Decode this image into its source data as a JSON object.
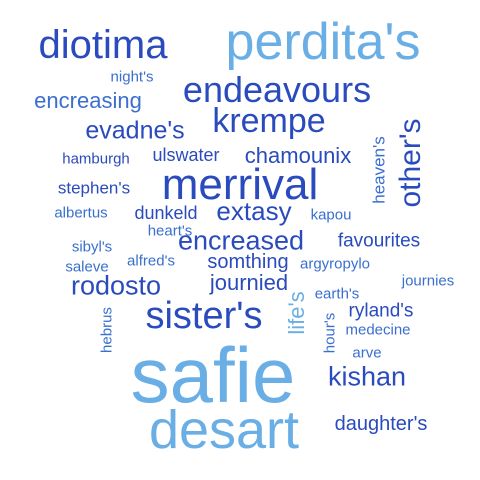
{
  "words": {
    "diotima": "diotima",
    "perdita": "perdita's",
    "nights": "night's",
    "encreasing": "encreasing",
    "endeavours": "endeavours",
    "evadnes": "evadne's",
    "krempe": "krempe",
    "heavens": "heaven's",
    "others": "other's",
    "hamburgh": "hamburgh",
    "ulswater": "ulswater",
    "chamounix": "chamounix",
    "merrival": "merrival",
    "stephens": "stephen's",
    "albertus": "albertus",
    "dunkeld": "dunkeld",
    "extasy": "extasy",
    "kapou": "kapou",
    "hearts": "heart's",
    "sibyls": "sibyl's",
    "encreased": "encreased",
    "favourites": "favourites",
    "saleve": "saleve",
    "alfreds": "alfred's",
    "somthing": "somthing",
    "argyropylo": "argyropylo",
    "journies": "journies",
    "rodosto": "rodosto",
    "journied": "journied",
    "earths": "earth's",
    "lifes": "life's",
    "rylands": "ryland's",
    "hebrus": "hebrus",
    "sisters": "sister's",
    "hours": "hour's",
    "medecine": "medecine",
    "arve": "arve",
    "safie": "safie",
    "kishan": "kishan",
    "desart": "desart",
    "daughters": "daughter's"
  },
  "colors": {
    "dark": "#2a4bbd",
    "mid": "#3a6fd0",
    "light": "#6aaee6",
    "background": "#ffffff"
  }
}
